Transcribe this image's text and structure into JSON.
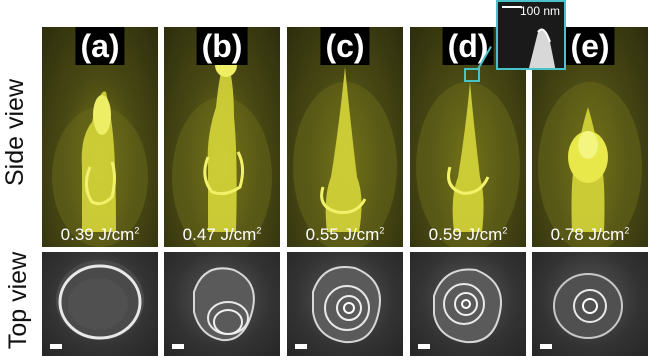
{
  "row_labels": {
    "side": "Side view",
    "top": "Top view"
  },
  "inset": {
    "scale_label": "100 nm"
  },
  "panels": [
    {
      "label": "(a)",
      "fluence_value": "0.39 J/cm",
      "fluence_exp": "2"
    },
    {
      "label": "(b)",
      "fluence_value": "0.47 J/cm",
      "fluence_exp": "2"
    },
    {
      "label": "(c)",
      "fluence_value": "0.55 J/cm",
      "fluence_exp": "2"
    },
    {
      "label": "(d)",
      "fluence_value": "0.59 J/cm",
      "fluence_exp": "2"
    },
    {
      "label": "(e)",
      "fluence_value": "0.78 J/cm",
      "fluence_exp": "2"
    }
  ],
  "colors": {
    "accent": "#49c3c8",
    "spike": "#e8e84a",
    "sem_side": "#4a4a14",
    "sem_top": "#3a3a3a"
  }
}
